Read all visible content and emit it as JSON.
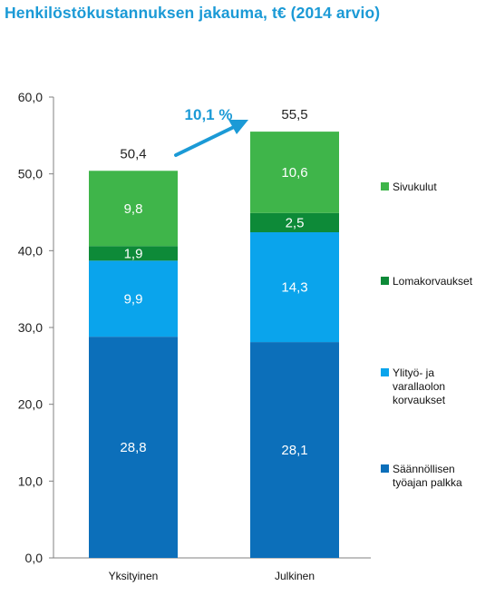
{
  "chart_data": {
    "type": "bar",
    "stacked": true,
    "title": "Henkilöstökustannuksen jakauma, t€ (2014 arvio)",
    "categories": [
      "Yksityinen",
      "Julkinen"
    ],
    "series": [
      {
        "name": "Säännöllisen työajan palkka",
        "lines": [
          "Säännöllisen",
          "työajan palkka"
        ],
        "color": "#0c6fba",
        "values": [
          28.8,
          28.1
        ],
        "labels": [
          "28,8",
          "28,1"
        ]
      },
      {
        "name": "Ylityö- ja varallaolon korvaukset",
        "lines": [
          "Ylityö- ja",
          "varallaolon",
          "korvaukset"
        ],
        "color": "#0aa4ec",
        "values": [
          9.9,
          14.3
        ],
        "labels": [
          "9,9",
          "14,3"
        ]
      },
      {
        "name": "Lomakorvaukset",
        "lines": [
          "Lomakorvaukset"
        ],
        "color": "#0d8a38",
        "values": [
          1.9,
          2.5
        ],
        "labels": [
          "1,9",
          "2,5"
        ]
      },
      {
        "name": "Sivukulut",
        "lines": [
          "Sivukulut"
        ],
        "color": "#3fb54a",
        "values": [
          9.8,
          10.6
        ],
        "labels": [
          "9,8",
          "10,6"
        ]
      }
    ],
    "totals": [
      "50,4",
      "55,5"
    ],
    "growth_label": "10,1 %",
    "ylim": [
      0,
      60
    ],
    "yticks": [
      0,
      10,
      20,
      30,
      40,
      50,
      60
    ],
    "ytick_labels": [
      "0,0",
      "10,0",
      "20,0",
      "30,0",
      "40,0",
      "50,0",
      "60,0"
    ],
    "grid": false,
    "legend_position": "right"
  }
}
